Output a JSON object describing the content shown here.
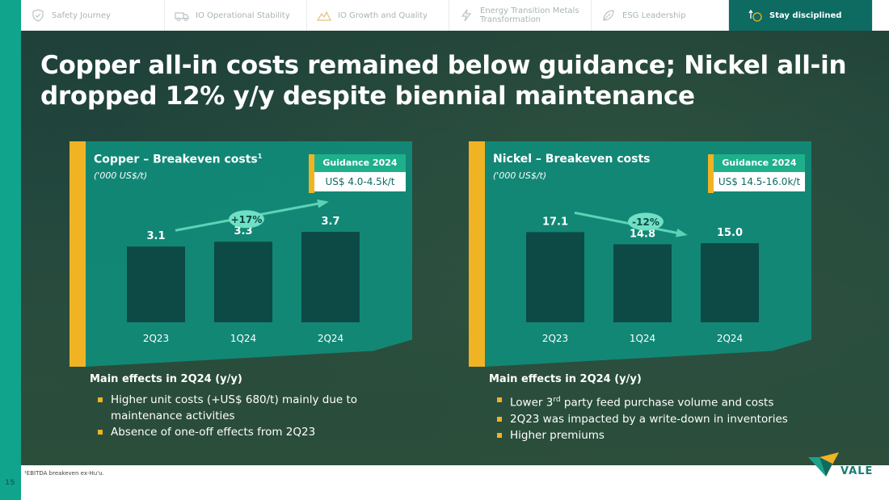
{
  "page": {
    "number": "15"
  },
  "nav": {
    "tabs": [
      {
        "label": "Safety Journey",
        "icon": "shield-check-icon",
        "active": false
      },
      {
        "label": "IO Operational Stability",
        "icon": "truck-icon",
        "active": false
      },
      {
        "label": "IO Growth and Quality",
        "icon": "mountain-growth-icon",
        "active": false
      },
      {
        "label_line1": "Energy Transition Metals",
        "label_line2": "Transformation",
        "icon": "lightning-icon",
        "active": false
      },
      {
        "label": "ESG Leadership",
        "icon": "leaf-icon",
        "active": false
      },
      {
        "label": "Stay disciplined",
        "icon": "coin-arrow-icon",
        "active": true
      }
    ]
  },
  "title": {
    "line1": "Copper all-in costs remained below guidance; Nickel all-in",
    "line2": "dropped 12% y/y despite biennial maintenance"
  },
  "copper": {
    "panel_title": "Copper – Breakeven costs",
    "panel_title_sup": "1",
    "unit": "('000 US$/t)",
    "guidance_head": "Guidance 2024",
    "guidance_value": "US$ 4.0-4.5k/t",
    "change_badge": "+17%",
    "effects_heading": "Main effects in 2Q24 (y/y)",
    "effects": [
      "Higher unit costs (+US$ 680/t) mainly due to",
      "maintenance activities",
      "Absence of one-off effects from 2Q23"
    ]
  },
  "nickel": {
    "panel_title": "Nickel – Breakeven costs",
    "unit": "('000 US$/t)",
    "guidance_head": "Guidance 2024",
    "guidance_value": "US$ 14.5-16.0k/t",
    "change_badge": "-12%",
    "effects_heading": "Main effects in 2Q24 (y/y)",
    "effects_item1_pre": "Lower 3",
    "effects_item1_sup": "rd",
    "effects_item1_post": " party feed purchase volume and costs",
    "effects": [
      "2Q23 was impacted by a write-down in inventories",
      "Higher premiums"
    ]
  },
  "footnote": "¹EBITDA breakeven ex-Hu'u.",
  "brand": {
    "logo_text": "VALE"
  },
  "colors": {
    "accent_yellow": "#f0b323",
    "panel_teal": "#108c7a",
    "bar_dark": "#0d4a45",
    "brand_green": "#10a48c"
  },
  "chart_data": [
    {
      "type": "bar",
      "title": "Copper – Breakeven costs",
      "ylabel": "('000 US$/t)",
      "categories": [
        "2Q23",
        "1Q24",
        "2Q24"
      ],
      "values": [
        3.1,
        3.3,
        3.7
      ],
      "value_labels": [
        "3.1",
        "3.3",
        "3.7"
      ],
      "annotation": "+17%",
      "ylim": [
        0,
        4.1
      ]
    },
    {
      "type": "bar",
      "title": "Nickel – Breakeven costs",
      "ylabel": "('000 US$/t)",
      "categories": [
        "2Q23",
        "1Q24",
        "2Q24"
      ],
      "values": [
        17.1,
        14.8,
        15.0
      ],
      "value_labels": [
        "17.1",
        "14.8",
        "15.0"
      ],
      "annotation": "-12%",
      "ylim": [
        0,
        19.0
      ]
    }
  ]
}
